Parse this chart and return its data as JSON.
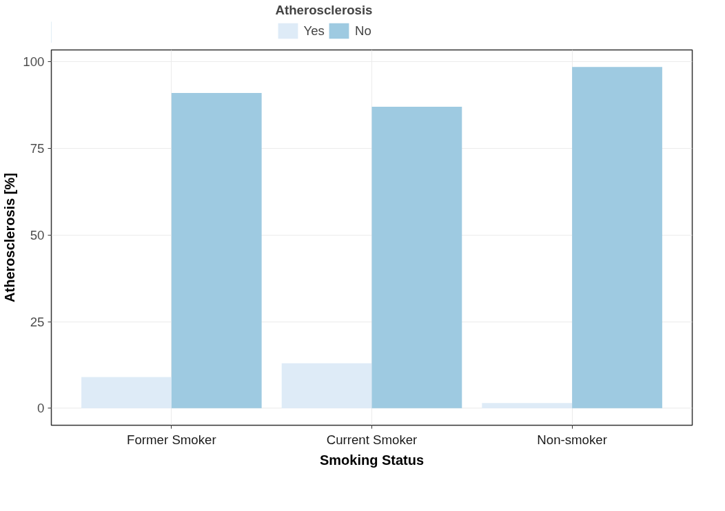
{
  "chart_data": {
    "type": "bar",
    "xlabel": "Smoking Status",
    "ylabel": "Atherosclerosis [%]",
    "legend_title": "Atherosclerosis",
    "categories": [
      "Former Smoker",
      "Current Smoker",
      "Non-smoker"
    ],
    "series": [
      {
        "name": "Yes",
        "color": "#deebf7",
        "values": [
          9,
          13,
          1.5
        ]
      },
      {
        "name": "No",
        "color": "#9ecae1",
        "values": [
          91,
          87,
          98.5
        ]
      }
    ],
    "ylim": [
      -4.9,
      103.4
    ],
    "yticks": [
      0,
      25,
      50,
      75,
      100
    ],
    "grid": true,
    "legend": "top"
  }
}
